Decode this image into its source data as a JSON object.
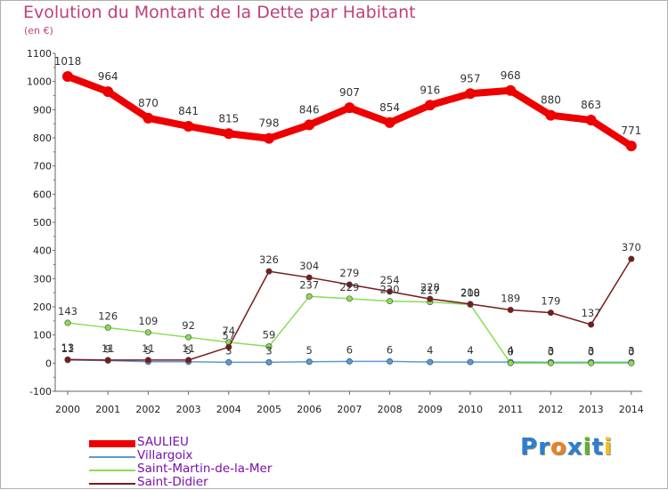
{
  "title": "Evolution du Montant de la Dette par Habitant",
  "subtitle": "(en €)",
  "logo": {
    "text": "Proxiti",
    "letters": [
      "P",
      "r",
      "o",
      "x",
      "i",
      "t",
      "i"
    ],
    "colors": [
      "#2a7fd0",
      "#2a7fd0",
      "#f08020",
      "#2a7fd0",
      "#60b030",
      "#2a7fd0",
      "#f0c020"
    ]
  },
  "chart_data": {
    "type": "line",
    "x": [
      "2000",
      "2001",
      "2002",
      "2003",
      "2004",
      "2005",
      "2006",
      "2007",
      "2008",
      "2009",
      "2010",
      "2011",
      "2012",
      "2013",
      "2014"
    ],
    "ylim": [
      -100,
      1100
    ],
    "yticks": [
      "-100",
      "0",
      "100",
      "200",
      "300",
      "400",
      "500",
      "600",
      "700",
      "800",
      "900",
      "1000",
      "1100"
    ],
    "grid": false,
    "legend_placement": "bottom-left",
    "series": [
      {
        "name": "SAULIEU",
        "color": "#ee0000",
        "values": [
          1018,
          964,
          870,
          841,
          815,
          798,
          846,
          907,
          854,
          916,
          957,
          968,
          880,
          863,
          771
        ],
        "labels": [
          "1018",
          "964",
          "870",
          "841",
          "815",
          "798",
          "846",
          "907",
          "854",
          "916",
          "957",
          "968",
          "880",
          "863",
          "771"
        ]
      },
      {
        "name": "Villargoix",
        "color": "#5a9ad6",
        "values": [
          11,
          9,
          5,
          5,
          3,
          3,
          5,
          6,
          6,
          4,
          4,
          4,
          3,
          3,
          3
        ],
        "labels": [
          "11",
          "9",
          "5",
          "5",
          "3",
          "3",
          "5",
          "6",
          "6",
          "4",
          "4",
          "4",
          "3",
          "3",
          "3"
        ]
      },
      {
        "name": "Saint-Martin-de-la-Mer",
        "color": "#88dd55",
        "values": [
          143,
          126,
          109,
          92,
          74,
          59,
          237,
          229,
          220,
          217,
          208,
          0,
          0,
          0,
          0
        ],
        "labels": [
          "143",
          "126",
          "109",
          "92",
          "74",
          "59",
          "237",
          "229",
          "220",
          "217",
          "208",
          "0",
          "0",
          "0",
          "0"
        ]
      },
      {
        "name": "Saint-Didier",
        "color": "#7a1a1a",
        "values": [
          13,
          11,
          11,
          11,
          57,
          326,
          304,
          279,
          254,
          228,
          210,
          189,
          179,
          137,
          370
        ],
        "labels": [
          "13",
          "11",
          "11",
          "11",
          "57",
          "326",
          "304",
          "279",
          "254",
          "228",
          "210",
          "189",
          "179",
          "137",
          "370"
        ]
      }
    ]
  }
}
